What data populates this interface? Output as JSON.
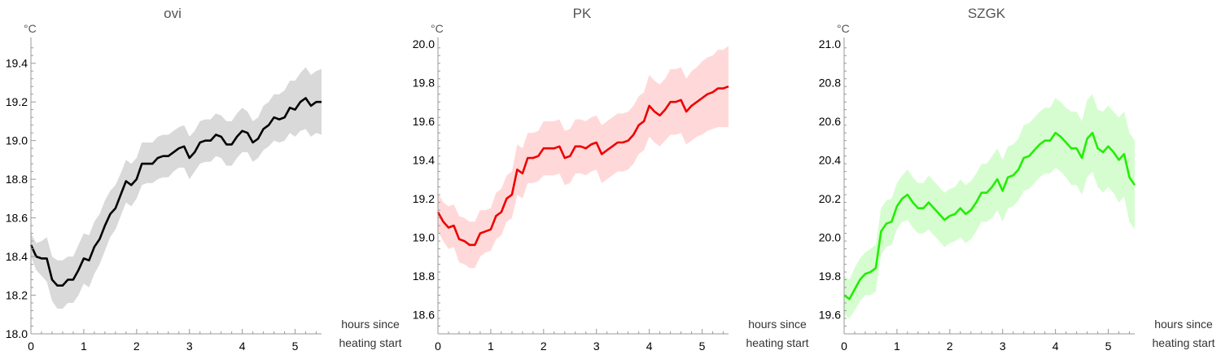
{
  "chart_data": [
    {
      "type": "line",
      "title": "ovi",
      "ylabel": "°C",
      "xlabel": "hours since\nheating start",
      "xlim": [
        0,
        5.5
      ],
      "ylim": [
        18.0,
        19.5
      ],
      "xticks": [
        0,
        1,
        2,
        3,
        4,
        5
      ],
      "yticks": [
        18.0,
        18.2,
        18.4,
        18.6,
        18.8,
        19.0,
        19.2,
        19.4
      ],
      "y_tick_decimals": 1,
      "line_color": "#000000",
      "band_color": "#d9d9d9",
      "series": [
        {
          "x": [
            0,
            0.1,
            0.2,
            0.3,
            0.4,
            0.5,
            0.6,
            0.7,
            0.8,
            0.9,
            1.0,
            1.1,
            1.2,
            1.3,
            1.4,
            1.5,
            1.6,
            1.7,
            1.8,
            1.9,
            2.0,
            2.1,
            2.2,
            2.3,
            2.4,
            2.5,
            2.6,
            2.7,
            2.8,
            2.9,
            3.0,
            3.1,
            3.2,
            3.3,
            3.4,
            3.5,
            3.6,
            3.7,
            3.8,
            3.9,
            4.0,
            4.1,
            4.2,
            4.3,
            4.4,
            4.5,
            4.6,
            4.7,
            4.8,
            4.9,
            5.0,
            5.1,
            5.2,
            5.3,
            5.4,
            5.5
          ],
          "y": [
            18.46,
            18.4,
            18.39,
            18.39,
            18.28,
            18.25,
            18.25,
            18.28,
            18.28,
            18.33,
            18.39,
            18.38,
            18.45,
            18.49,
            18.56,
            18.62,
            18.65,
            18.72,
            18.79,
            18.77,
            18.8,
            18.88,
            18.88,
            18.88,
            18.91,
            18.92,
            18.92,
            18.94,
            18.96,
            18.97,
            18.91,
            18.94,
            18.99,
            19.0,
            19.0,
            19.03,
            19.02,
            18.98,
            18.98,
            19.02,
            19.05,
            19.04,
            18.99,
            19.01,
            19.06,
            19.08,
            19.12,
            19.11,
            19.12,
            19.17,
            19.16,
            19.2,
            19.22,
            19.18,
            19.2,
            19.2
          ],
          "lower": [
            18.4,
            18.33,
            18.3,
            18.27,
            18.17,
            18.13,
            18.13,
            18.16,
            18.16,
            18.2,
            18.26,
            18.24,
            18.31,
            18.36,
            18.43,
            18.5,
            18.54,
            18.61,
            18.68,
            18.66,
            18.7,
            18.77,
            18.78,
            18.78,
            18.8,
            18.81,
            18.81,
            18.84,
            18.86,
            18.86,
            18.8,
            18.84,
            18.88,
            18.89,
            18.89,
            18.92,
            18.91,
            18.87,
            18.87,
            18.91,
            18.94,
            18.94,
            18.89,
            18.91,
            18.95,
            18.97,
            19.0,
            18.99,
            19.0,
            19.04,
            19.02,
            19.05,
            19.06,
            19.02,
            19.04,
            19.03
          ],
          "upper": [
            18.52,
            18.47,
            18.48,
            18.5,
            18.4,
            18.38,
            18.38,
            18.4,
            18.4,
            18.46,
            18.52,
            18.51,
            18.58,
            18.62,
            18.69,
            18.74,
            18.77,
            18.83,
            18.9,
            18.88,
            18.91,
            18.99,
            18.99,
            18.99,
            19.02,
            19.03,
            19.03,
            19.05,
            19.07,
            19.08,
            19.02,
            19.05,
            19.1,
            19.11,
            19.11,
            19.14,
            19.13,
            19.1,
            19.1,
            19.14,
            19.17,
            19.15,
            19.1,
            19.12,
            19.18,
            19.2,
            19.24,
            19.24,
            19.26,
            19.31,
            19.31,
            19.35,
            19.38,
            19.34,
            19.36,
            19.37
          ]
        }
      ]
    },
    {
      "type": "line",
      "title": "PK",
      "ylabel": "°C",
      "xlabel": "hours since\nheating start",
      "xlim": [
        0,
        5.5
      ],
      "ylim": [
        18.5,
        20.0
      ],
      "xticks": [
        0,
        1,
        2,
        3,
        4,
        5
      ],
      "yticks": [
        18.6,
        18.8,
        19.0,
        19.2,
        19.4,
        19.6,
        19.8,
        20.0
      ],
      "y_tick_decimals": 1,
      "line_color": "#ee0000",
      "band_color": "#ffd9d9",
      "series": [
        {
          "x": [
            0,
            0.1,
            0.2,
            0.3,
            0.4,
            0.5,
            0.6,
            0.7,
            0.8,
            0.9,
            1.0,
            1.1,
            1.2,
            1.3,
            1.4,
            1.5,
            1.6,
            1.7,
            1.8,
            1.9,
            2.0,
            2.1,
            2.2,
            2.3,
            2.4,
            2.5,
            2.6,
            2.7,
            2.8,
            2.9,
            3.0,
            3.1,
            3.2,
            3.3,
            3.4,
            3.5,
            3.6,
            3.7,
            3.8,
            3.9,
            4.0,
            4.1,
            4.2,
            4.3,
            4.4,
            4.5,
            4.6,
            4.7,
            4.8,
            4.9,
            5.0,
            5.1,
            5.2,
            5.3,
            5.4,
            5.5
          ],
          "y": [
            19.13,
            19.08,
            19.05,
            19.06,
            18.99,
            18.98,
            18.96,
            18.96,
            19.02,
            19.03,
            19.04,
            19.11,
            19.13,
            19.2,
            19.22,
            19.35,
            19.33,
            19.41,
            19.41,
            19.42,
            19.46,
            19.46,
            19.46,
            19.47,
            19.41,
            19.42,
            19.47,
            19.47,
            19.46,
            19.48,
            19.49,
            19.43,
            19.45,
            19.47,
            19.49,
            19.49,
            19.5,
            19.53,
            19.58,
            19.6,
            19.68,
            19.65,
            19.63,
            19.66,
            19.7,
            19.7,
            19.71,
            19.65,
            19.68,
            19.7,
            19.72,
            19.74,
            19.75,
            19.77,
            19.77,
            19.78
          ],
          "lower": [
            19.03,
            18.98,
            18.94,
            18.95,
            18.87,
            18.86,
            18.84,
            18.84,
            18.9,
            18.92,
            18.93,
            18.99,
            19.01,
            19.08,
            19.1,
            19.22,
            19.2,
            19.28,
            19.28,
            19.29,
            19.32,
            19.32,
            19.32,
            19.33,
            19.27,
            19.28,
            19.33,
            19.33,
            19.32,
            19.34,
            19.35,
            19.28,
            19.3,
            19.32,
            19.34,
            19.34,
            19.35,
            19.38,
            19.43,
            19.45,
            19.52,
            19.49,
            19.47,
            19.5,
            19.53,
            19.53,
            19.54,
            19.48,
            19.5,
            19.52,
            19.53,
            19.55,
            19.56,
            19.57,
            19.57,
            19.57
          ],
          "upper": [
            19.23,
            19.18,
            19.16,
            19.17,
            19.11,
            19.1,
            19.08,
            19.08,
            19.14,
            19.14,
            19.15,
            19.23,
            19.25,
            19.32,
            19.34,
            19.48,
            19.46,
            19.54,
            19.54,
            19.55,
            19.6,
            19.6,
            19.6,
            19.61,
            19.55,
            19.56,
            19.61,
            19.61,
            19.6,
            19.62,
            19.63,
            19.58,
            19.6,
            19.62,
            19.64,
            19.64,
            19.65,
            19.68,
            19.73,
            19.75,
            19.84,
            19.81,
            19.79,
            19.82,
            19.87,
            19.87,
            19.88,
            19.82,
            19.86,
            19.88,
            19.91,
            19.93,
            19.94,
            19.97,
            19.97,
            19.99
          ]
        }
      ]
    },
    {
      "type": "line",
      "title": "SZGK",
      "ylabel": "°C",
      "xlabel": "hours since\nheating start",
      "xlim": [
        0,
        5.5
      ],
      "ylim": [
        19.5,
        21.0
      ],
      "xticks": [
        0,
        1,
        2,
        3,
        4,
        5
      ],
      "yticks": [
        19.6,
        19.8,
        20.0,
        20.2,
        20.4,
        20.6,
        20.8,
        21.0
      ],
      "y_tick_decimals": 1,
      "line_color": "#22ee00",
      "band_color": "#d6fdd0",
      "series": [
        {
          "x": [
            0,
            0.1,
            0.2,
            0.3,
            0.4,
            0.5,
            0.6,
            0.7,
            0.8,
            0.9,
            1.0,
            1.1,
            1.2,
            1.3,
            1.4,
            1.5,
            1.6,
            1.7,
            1.8,
            1.9,
            2.0,
            2.1,
            2.2,
            2.3,
            2.4,
            2.5,
            2.6,
            2.7,
            2.8,
            2.9,
            3.0,
            3.1,
            3.2,
            3.3,
            3.4,
            3.5,
            3.6,
            3.7,
            3.8,
            3.9,
            4.0,
            4.1,
            4.2,
            4.3,
            4.4,
            4.5,
            4.6,
            4.7,
            4.8,
            4.9,
            5.0,
            5.1,
            5.2,
            5.3,
            5.4,
            5.5
          ],
          "y": [
            19.7,
            19.68,
            19.73,
            19.78,
            19.81,
            19.82,
            19.84,
            20.03,
            20.07,
            20.08,
            20.16,
            20.2,
            20.22,
            20.18,
            20.15,
            20.15,
            20.18,
            20.15,
            20.12,
            20.09,
            20.11,
            20.12,
            20.15,
            20.12,
            20.14,
            20.18,
            20.23,
            20.23,
            20.26,
            20.3,
            20.24,
            20.31,
            20.32,
            20.35,
            20.41,
            20.42,
            20.45,
            20.48,
            20.5,
            20.5,
            20.54,
            20.52,
            20.49,
            20.46,
            20.46,
            20.41,
            20.51,
            20.54,
            20.46,
            20.44,
            20.47,
            20.44,
            20.4,
            20.43,
            20.31,
            20.27
          ],
          "lower": [
            19.6,
            19.58,
            19.62,
            19.67,
            19.7,
            19.7,
            19.72,
            19.91,
            19.95,
            19.96,
            20.04,
            20.08,
            20.09,
            20.05,
            20.02,
            20.02,
            20.04,
            20.01,
            19.98,
            19.95,
            19.97,
            19.98,
            20.0,
            19.97,
            19.99,
            20.03,
            20.08,
            20.08,
            20.1,
            20.14,
            20.08,
            20.15,
            20.16,
            20.19,
            20.24,
            20.25,
            20.28,
            20.31,
            20.33,
            20.33,
            20.36,
            20.34,
            20.31,
            20.27,
            20.27,
            20.22,
            20.31,
            20.34,
            20.26,
            20.23,
            20.26,
            20.23,
            20.18,
            20.21,
            20.08,
            20.04
          ],
          "upper": [
            19.8,
            19.78,
            19.84,
            19.89,
            19.92,
            19.94,
            19.96,
            20.15,
            20.19,
            20.2,
            20.28,
            20.32,
            20.35,
            20.31,
            20.28,
            20.28,
            20.32,
            20.29,
            20.26,
            20.23,
            20.25,
            20.26,
            20.3,
            20.27,
            20.29,
            20.33,
            20.38,
            20.38,
            20.42,
            20.46,
            20.4,
            20.47,
            20.48,
            20.51,
            20.58,
            20.59,
            20.62,
            20.65,
            20.67,
            20.67,
            20.72,
            20.7,
            20.67,
            20.65,
            20.65,
            20.6,
            20.71,
            20.74,
            20.66,
            20.65,
            20.68,
            20.65,
            20.62,
            20.65,
            20.54,
            20.5
          ]
        }
      ]
    }
  ]
}
